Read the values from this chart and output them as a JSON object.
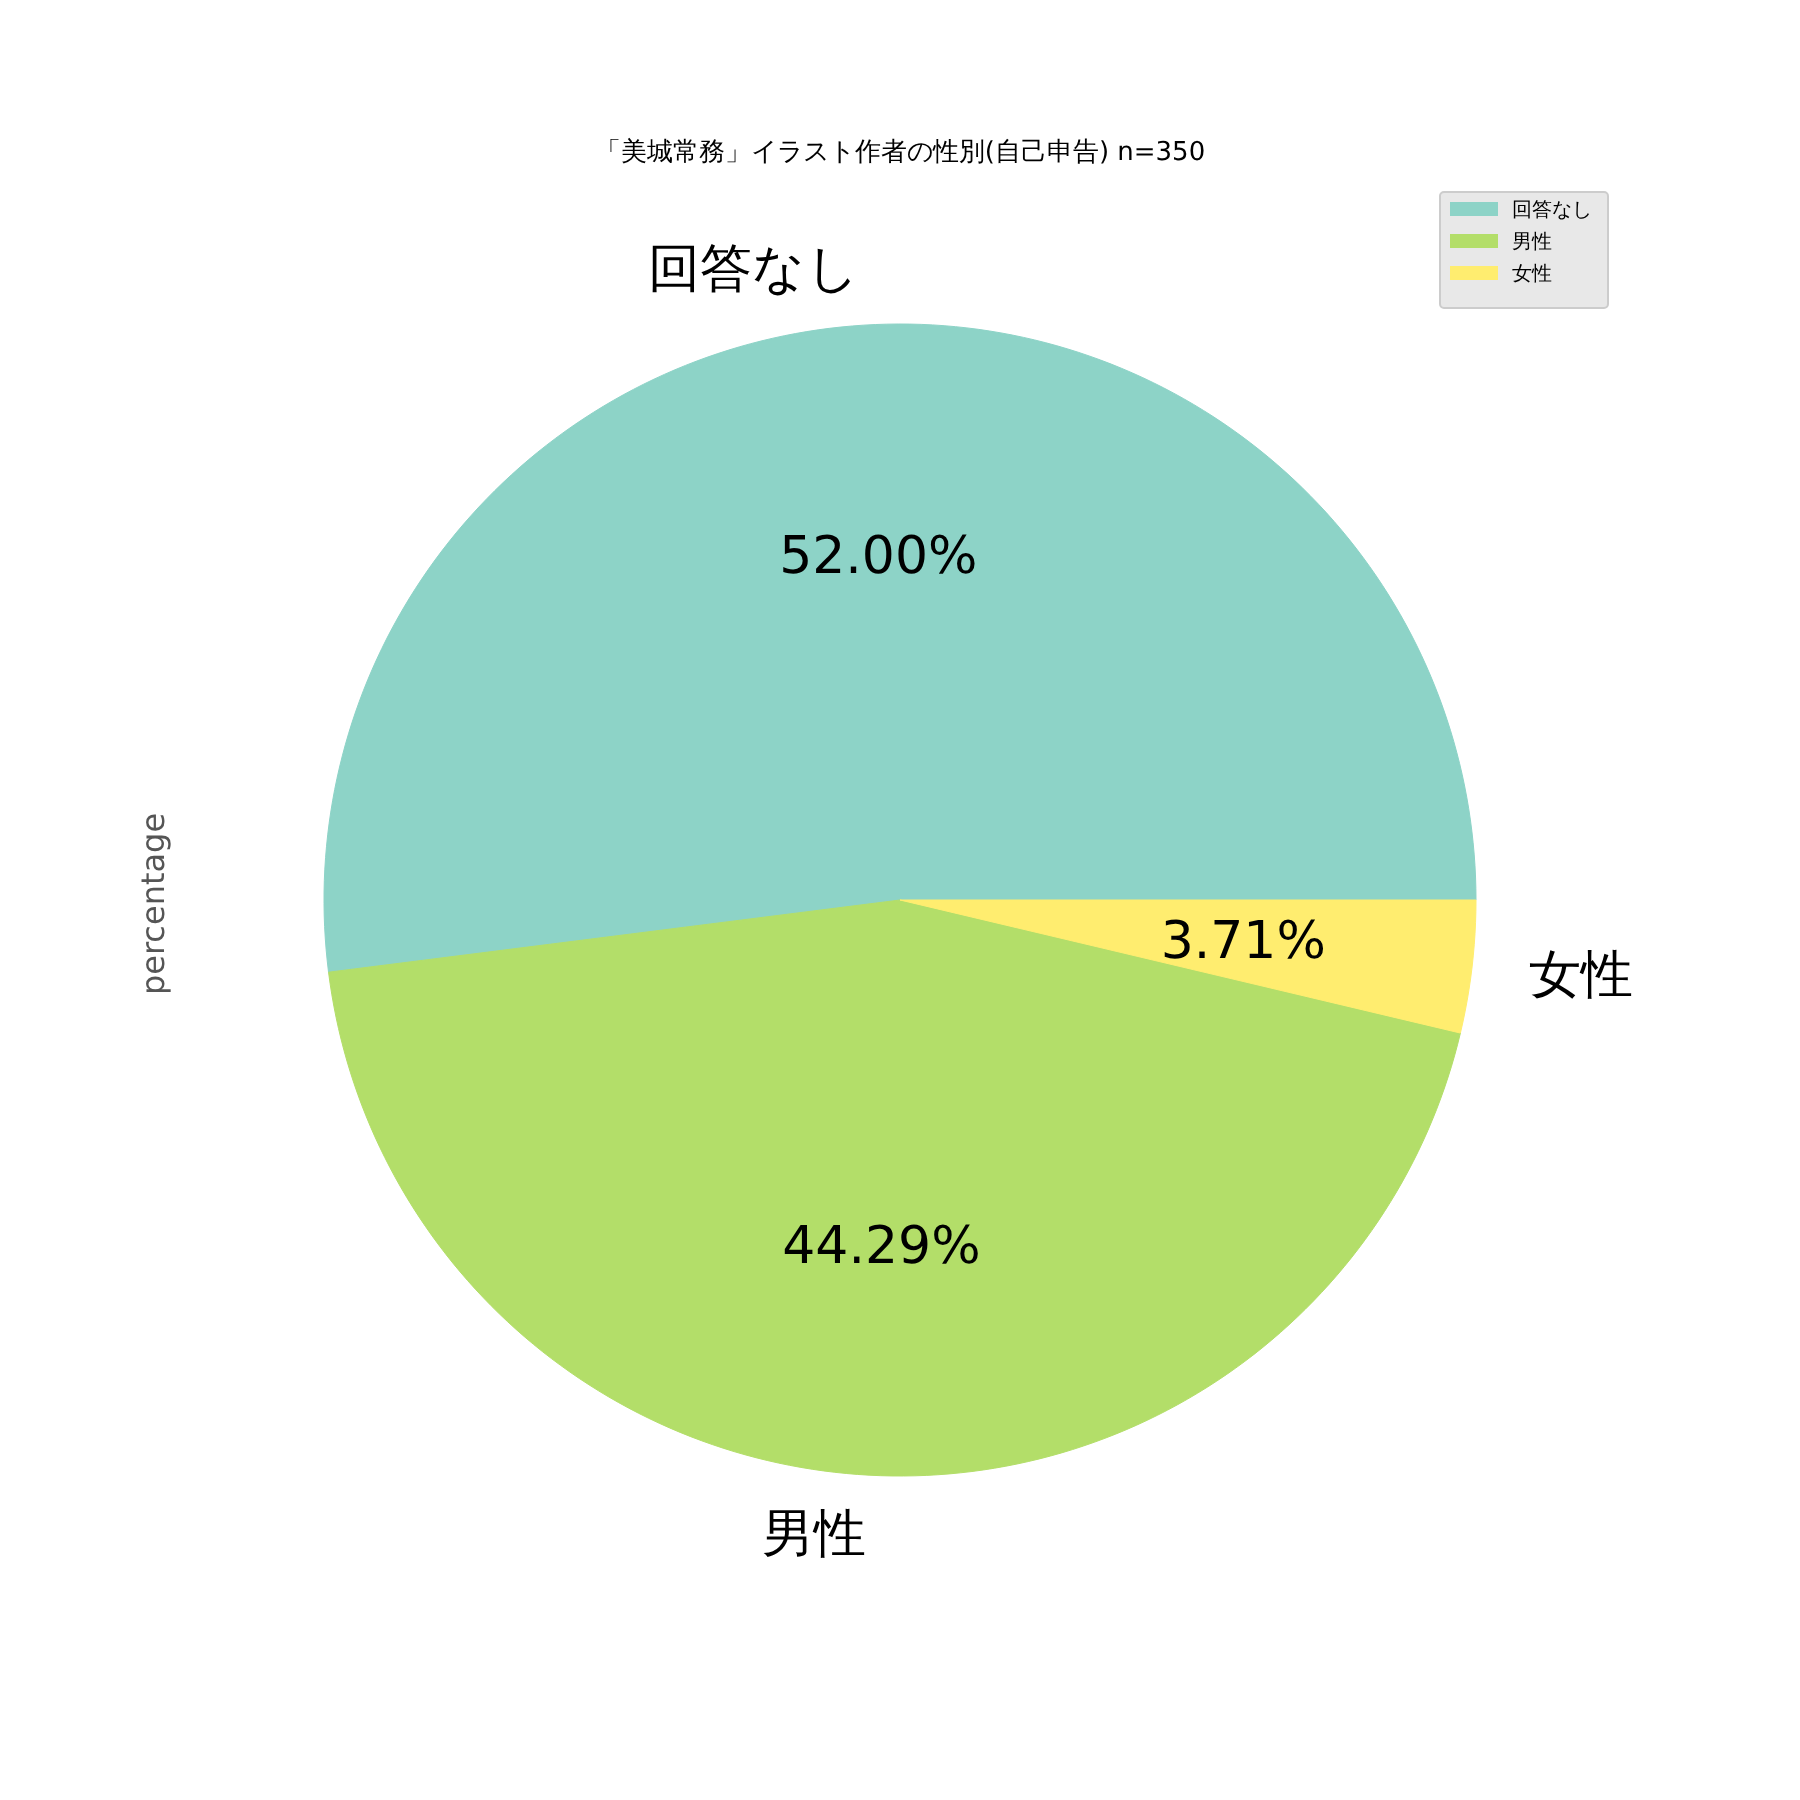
{
  "chart_data": {
    "type": "pie",
    "title": "「美城常務」イラスト作者の性別(自己申告) n=350",
    "ylabel": "percentage",
    "categories": [
      "回答なし",
      "男性",
      "女性"
    ],
    "values": [
      52.0,
      44.29,
      3.71
    ],
    "colors": [
      "#8dd3c7",
      "#b3de69",
      "#ffed6f"
    ],
    "value_labels": [
      "52.00%",
      "44.29%",
      "3.71%"
    ],
    "legend": "top right"
  }
}
